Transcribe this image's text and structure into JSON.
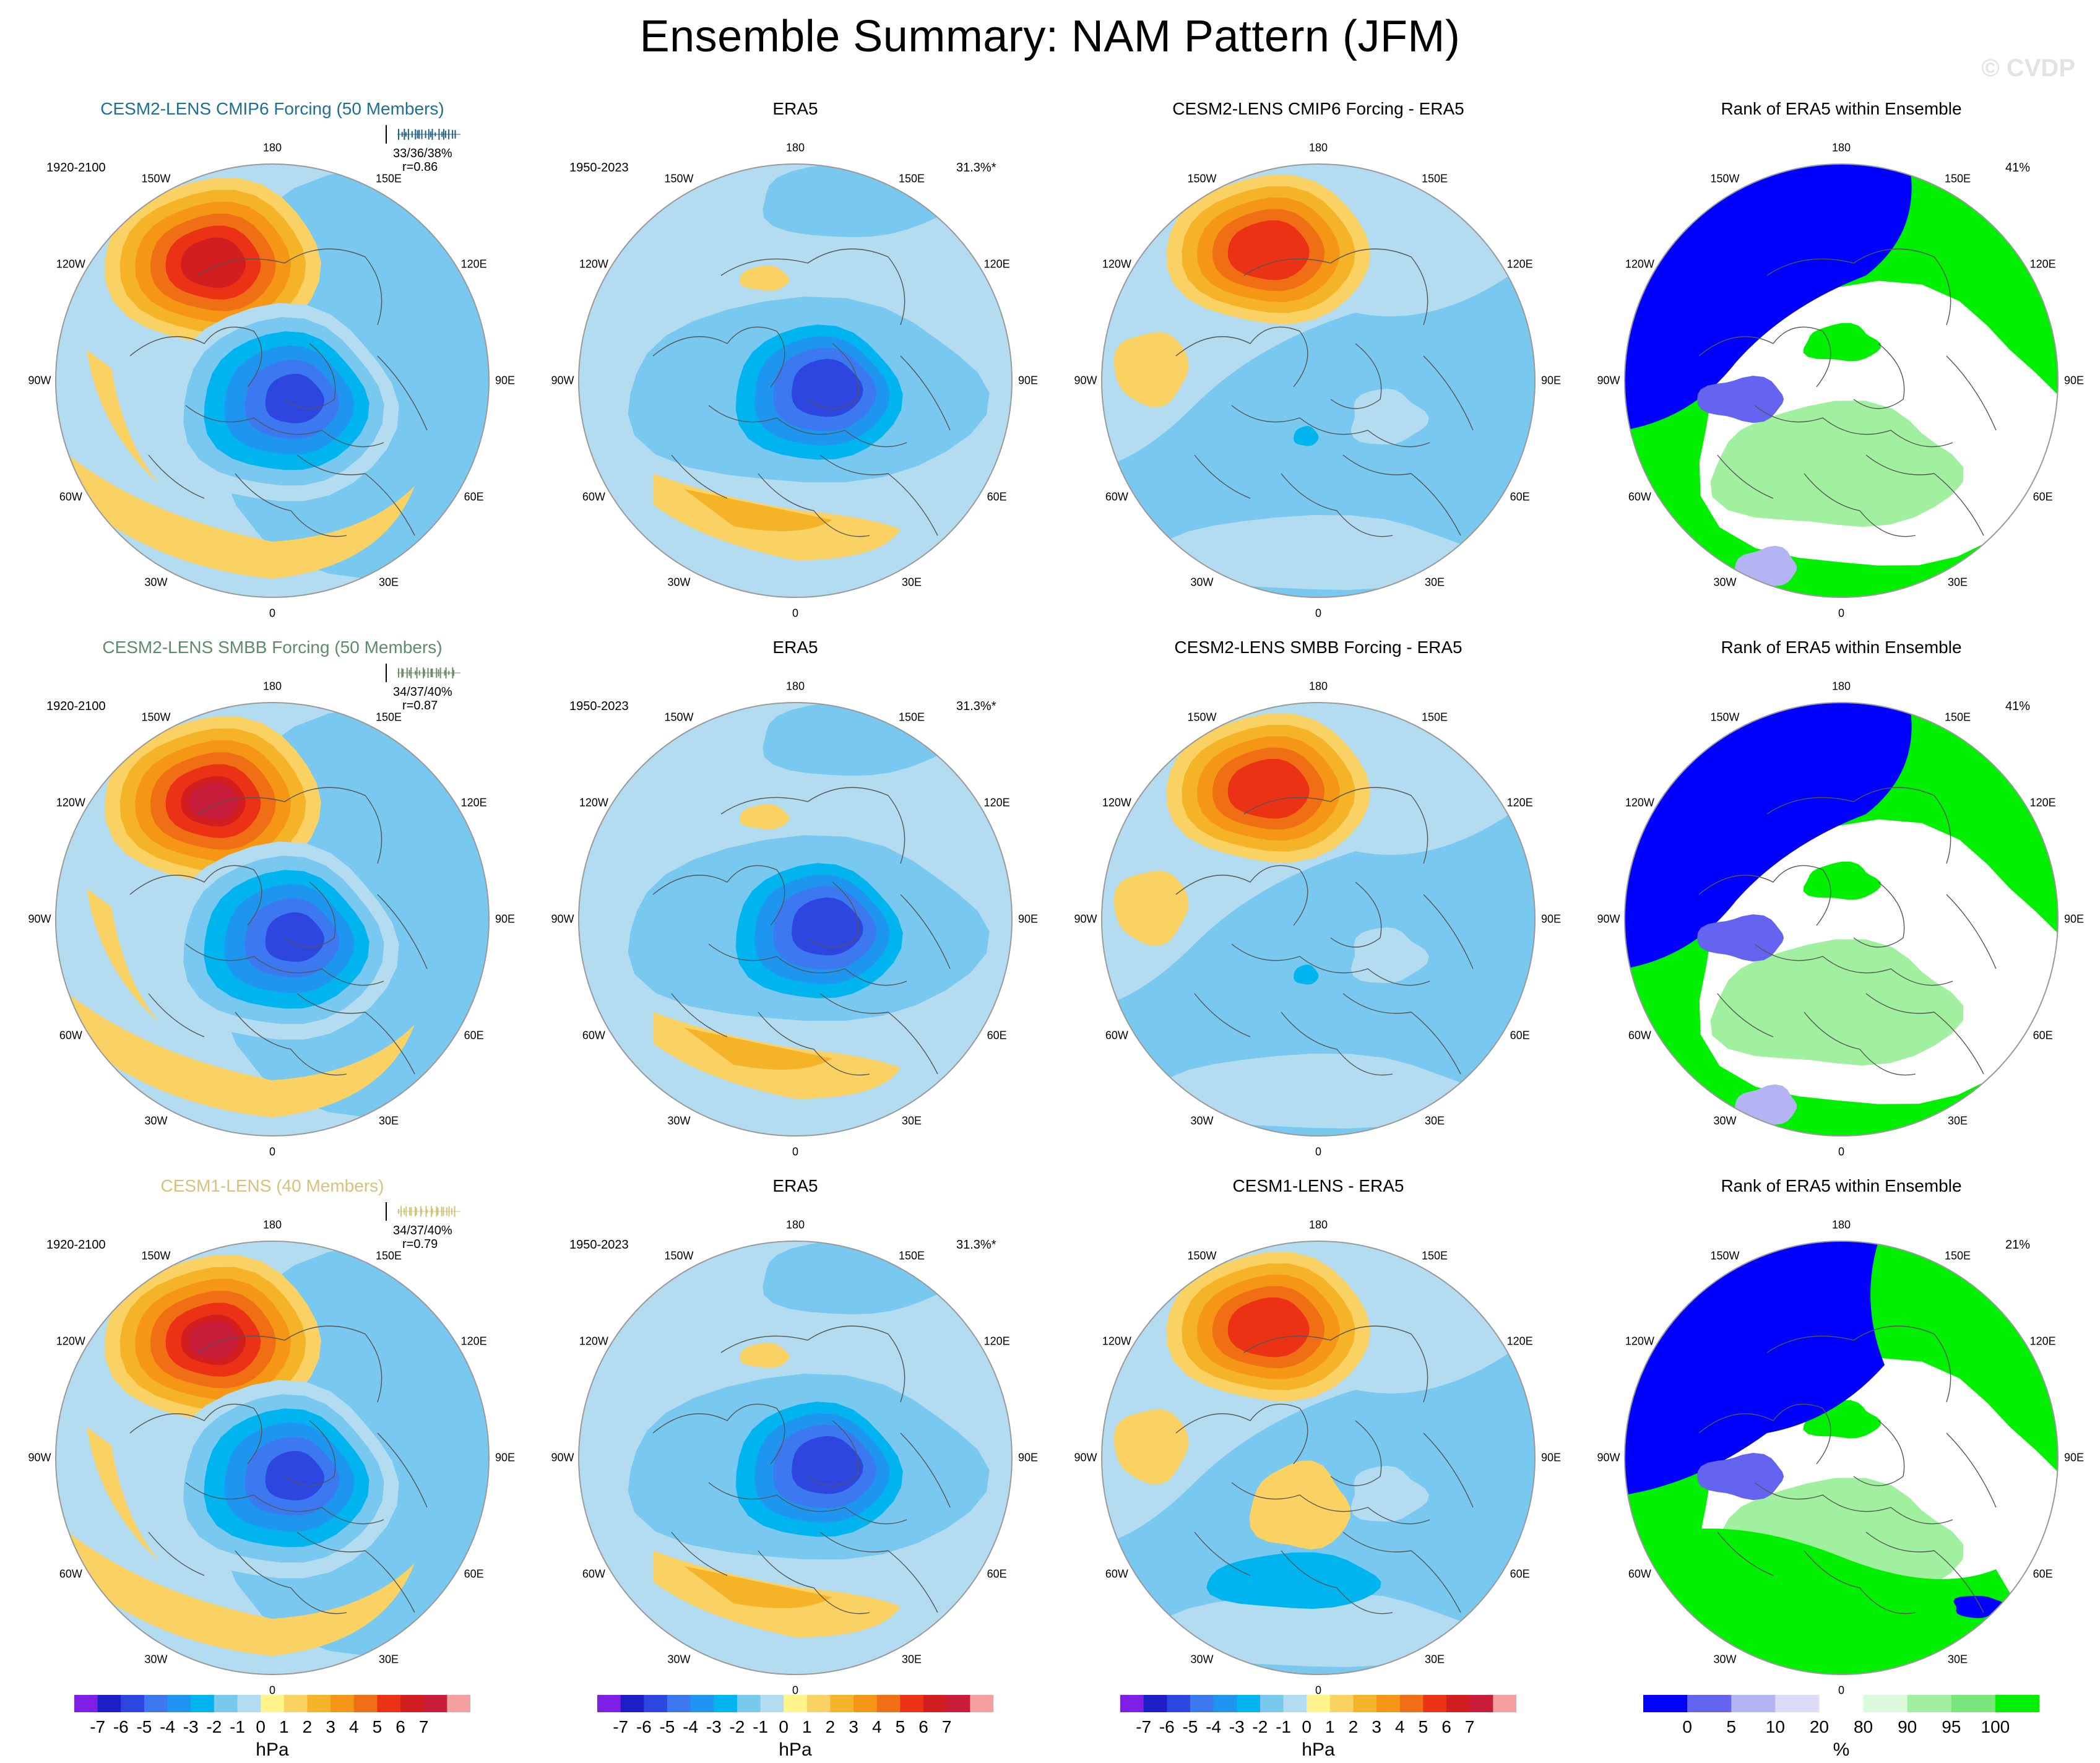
{
  "title": "Ensemble Summary: NAM Pattern (JFM)",
  "watermark": "© CVDP",
  "colors": {
    "hpa_levels": [
      "#7f1fe6",
      "#1e1ec8",
      "#2d46e0",
      "#3c78f0",
      "#1e96f0",
      "#00b4f0",
      "#78c8ef",
      "#b4dcf0",
      "#fff58c",
      "#fad264",
      "#f5b428",
      "#f59614",
      "#f06e14",
      "#eb3214",
      "#d21e1e",
      "#c81e3c",
      "#f5a0a0"
    ],
    "rank_levels": [
      "#0000ff",
      "#6464f0",
      "#b4b4f5",
      "#dcdcf8",
      "#ffffff",
      "#dcfadc",
      "#a0f0a0",
      "#78e678",
      "#00f000"
    ],
    "map_border": "#9a9a9a",
    "coast": "#555555",
    "sparkline": [
      "#1f5f88",
      "#6d8c64",
      "#cfc47a"
    ]
  },
  "lon_labels": [
    "180",
    "150E",
    "120E",
    "90E",
    "60E",
    "30E",
    "0",
    "30W",
    "60W",
    "90W",
    "120W",
    "150W"
  ],
  "rows": [
    {
      "model_title": "CESM2-LENS CMIP6 Forcing (50 Members)",
      "model_title_color": "#1f6f92",
      "model_period": "1920-2100",
      "model_stats": "33/36/38%",
      "model_corr": "r=0.86",
      "obs_title": "ERA5",
      "obs_period": "1950-2023",
      "obs_pct": "31.3%*",
      "diff_title": "CESM2-LENS CMIP6 Forcing - ERA5",
      "rank_title": "Rank of ERA5 within Ensemble",
      "rank_pct": "41%"
    },
    {
      "model_title": "CESM2-LENS SMBB Forcing (50 Members)",
      "model_title_color": "#5c8c6a",
      "model_period": "1920-2100",
      "model_stats": "34/37/40%",
      "model_corr": "r=0.87",
      "obs_title": "ERA5",
      "obs_period": "1950-2023",
      "obs_pct": "31.3%*",
      "diff_title": "CESM2-LENS SMBB Forcing - ERA5",
      "rank_title": "Rank of ERA5 within Ensemble",
      "rank_pct": "41%"
    },
    {
      "model_title": "CESM1-LENS (40 Members)",
      "model_title_color": "#d6c27c",
      "model_period": "1920-2100",
      "model_stats": "34/37/40%",
      "model_corr": "r=0.79",
      "obs_title": "ERA5",
      "obs_period": "1950-2023",
      "obs_pct": "31.3%*",
      "diff_title": "CESM1-LENS - ERA5",
      "rank_title": "Rank of ERA5 within Ensemble",
      "rank_pct": "21%"
    }
  ],
  "colorbars": {
    "hpa": {
      "labels": [
        "-7",
        "-6",
        "-5",
        "-4",
        "-3",
        "-2",
        "-1",
        "0",
        "1",
        "2",
        "3",
        "4",
        "5",
        "6",
        "7"
      ],
      "unit": "hPa"
    },
    "rank": {
      "labels": [
        "0",
        "5",
        "10",
        "20",
        "80",
        "90",
        "95",
        "100"
      ],
      "unit": "%"
    }
  },
  "chart_data": {
    "type": "heatmap",
    "title": "Ensemble Summary: NAM Pattern (JFM)",
    "projection": "north polar stereographic",
    "hpa_contour_levels": [
      -7,
      -6,
      -5,
      -4,
      -3,
      -2,
      -1,
      0,
      1,
      2,
      3,
      4,
      5,
      6,
      7
    ],
    "rank_contour_levels": [
      0,
      5,
      10,
      20,
      80,
      90,
      95,
      100
    ],
    "panels": [
      {
        "row": 1,
        "col": 1,
        "title": "CESM2-LENS CMIP6 Forcing (50 Members)",
        "unit": "hPa",
        "min": -6,
        "max": 6
      },
      {
        "row": 1,
        "col": 2,
        "title": "ERA5",
        "unit": "hPa",
        "min": -6,
        "max": 4
      },
      {
        "row": 1,
        "col": 3,
        "title": "CESM2-LENS CMIP6 Forcing - ERA5",
        "unit": "hPa",
        "min": -2,
        "max": 6
      },
      {
        "row": 1,
        "col": 4,
        "title": "Rank of ERA5 within Ensemble",
        "unit": "%",
        "min": 0,
        "max": 100
      },
      {
        "row": 2,
        "col": 1,
        "title": "CESM2-LENS SMBB Forcing (50 Members)",
        "unit": "hPa",
        "min": -6,
        "max": 6
      },
      {
        "row": 2,
        "col": 2,
        "title": "ERA5",
        "unit": "hPa",
        "min": -6,
        "max": 4
      },
      {
        "row": 2,
        "col": 3,
        "title": "CESM2-LENS SMBB Forcing - ERA5",
        "unit": "hPa",
        "min": -1,
        "max": 6
      },
      {
        "row": 2,
        "col": 4,
        "title": "Rank of ERA5 within Ensemble",
        "unit": "%",
        "min": 0,
        "max": 100
      },
      {
        "row": 3,
        "col": 1,
        "title": "CESM1-LENS (40 Members)",
        "unit": "hPa",
        "min": -6,
        "max": 6
      },
      {
        "row": 3,
        "col": 2,
        "title": "ERA5",
        "unit": "hPa",
        "min": -6,
        "max": 4
      },
      {
        "row": 3,
        "col": 3,
        "title": "CESM1-LENS - ERA5",
        "unit": "hPa",
        "min": -2,
        "max": 5
      },
      {
        "row": 3,
        "col": 4,
        "title": "Rank of ERA5 within Ensemble",
        "unit": "%",
        "min": 0,
        "max": 100
      }
    ]
  }
}
